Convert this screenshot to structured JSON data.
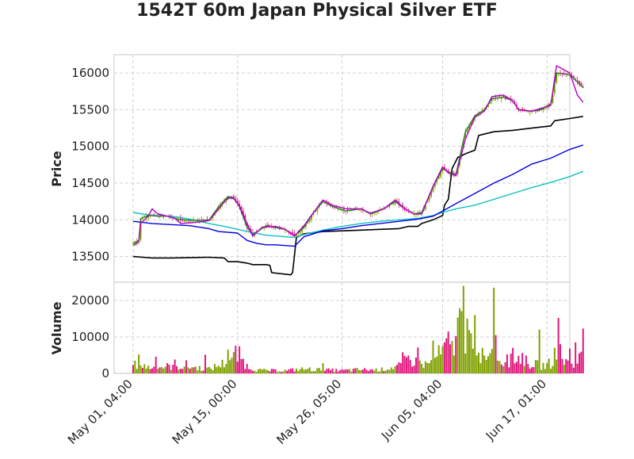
{
  "chart_data": {
    "type": "candlestick",
    "title": "1542T 60m Japan Physical Silver ETF",
    "price_panel": {
      "ylabel": "Price",
      "ylim": [
        13150,
        16250
      ],
      "yticks": [
        13500,
        14000,
        14500,
        15000,
        15500,
        16000
      ],
      "ytick_labels": [
        "13500",
        "14000",
        "14500",
        "15000",
        "15500",
        "16000"
      ],
      "grid": true
    },
    "volume_panel": {
      "ylabel": "Volume",
      "ylim": [
        0,
        25000
      ],
      "yticks": [
        0,
        10000,
        20000
      ],
      "ytick_labels": [
        "0",
        "10000",
        "20000"
      ],
      "grid": true
    },
    "x_range": [
      -10,
      230
    ],
    "xticks": [
      0,
      55,
      110,
      163,
      218
    ],
    "xtick_labels": [
      "May 01, 04:00",
      "May 15, 00:00",
      "May 26, 05:00",
      "Jun 05, 04:00",
      "Jun 17, 01:00"
    ],
    "colors": {
      "up": "#7fa000",
      "down": "#e0187c",
      "price_line": "#1e7a1e",
      "ma_fast": "#b000c8",
      "ma_blue": "#0000e0",
      "ma_cyan": "#10c0c0",
      "ma_black": "#000000",
      "grid": "#d0d0d0",
      "frame": "#dcdcdc"
    },
    "close_path": [
      [
        0,
        13680
      ],
      [
        3,
        13720
      ],
      [
        4,
        14020
      ],
      [
        8,
        14060
      ],
      [
        13,
        14050
      ],
      [
        18,
        14050
      ],
      [
        25,
        14000
      ],
      [
        35,
        13990
      ],
      [
        40,
        14000
      ],
      [
        45,
        14180
      ],
      [
        50,
        14320
      ],
      [
        53,
        14300
      ],
      [
        56,
        14180
      ],
      [
        60,
        13900
      ],
      [
        63,
        13800
      ],
      [
        70,
        13920
      ],
      [
        80,
        13870
      ],
      [
        85,
        13780
      ],
      [
        90,
        13900
      ],
      [
        95,
        14100
      ],
      [
        100,
        14250
      ],
      [
        105,
        14180
      ],
      [
        112,
        14120
      ],
      [
        120,
        14150
      ],
      [
        125,
        14080
      ],
      [
        132,
        14150
      ],
      [
        138,
        14250
      ],
      [
        143,
        14150
      ],
      [
        148,
        14080
      ],
      [
        152,
        14100
      ],
      [
        158,
        14450
      ],
      [
        163,
        14700
      ],
      [
        166,
        14650
      ],
      [
        170,
        14620
      ],
      [
        175,
        15200
      ],
      [
        180,
        15420
      ],
      [
        185,
        15500
      ],
      [
        189,
        15650
      ],
      [
        195,
        15670
      ],
      [
        200,
        15620
      ],
      [
        203,
        15500
      ],
      [
        210,
        15480
      ],
      [
        215,
        15500
      ],
      [
        220,
        15580
      ],
      [
        223,
        16000
      ],
      [
        230,
        15980
      ],
      [
        237,
        15800
      ]
    ],
    "ma_fast_path": [
      [
        0,
        13650
      ],
      [
        3,
        13700
      ],
      [
        4,
        13950
      ],
      [
        8,
        14050
      ],
      [
        10,
        14150
      ],
      [
        13,
        14080
      ],
      [
        18,
        14050
      ],
      [
        22,
        14020
      ],
      [
        25,
        13950
      ],
      [
        35,
        13970
      ],
      [
        40,
        13990
      ],
      [
        45,
        14150
      ],
      [
        50,
        14300
      ],
      [
        53,
        14290
      ],
      [
        56,
        14190
      ],
      [
        60,
        13950
      ],
      [
        63,
        13780
      ],
      [
        68,
        13900
      ],
      [
        75,
        13910
      ],
      [
        80,
        13870
      ],
      [
        85,
        13780
      ],
      [
        90,
        13920
      ],
      [
        95,
        14100
      ],
      [
        100,
        14270
      ],
      [
        105,
        14200
      ],
      [
        112,
        14150
      ],
      [
        120,
        14150
      ],
      [
        125,
        14090
      ],
      [
        132,
        14150
      ],
      [
        138,
        14270
      ],
      [
        143,
        14150
      ],
      [
        148,
        14080
      ],
      [
        152,
        14080
      ],
      [
        158,
        14460
      ],
      [
        163,
        14720
      ],
      [
        166,
        14640
      ],
      [
        170,
        14600
      ],
      [
        175,
        15100
      ],
      [
        180,
        15400
      ],
      [
        185,
        15480
      ],
      [
        189,
        15680
      ],
      [
        195,
        15700
      ],
      [
        200,
        15620
      ],
      [
        203,
        15500
      ],
      [
        210,
        15480
      ],
      [
        215,
        15520
      ],
      [
        220,
        15560
      ],
      [
        223,
        16100
      ],
      [
        230,
        16000
      ],
      [
        234,
        15700
      ],
      [
        237,
        15600
      ]
    ],
    "ma_blue_path": [
      [
        0,
        13980
      ],
      [
        10,
        13950
      ],
      [
        30,
        13920
      ],
      [
        40,
        13880
      ],
      [
        45,
        13840
      ],
      [
        55,
        13820
      ],
      [
        60,
        13720
      ],
      [
        65,
        13680
      ],
      [
        70,
        13660
      ],
      [
        75,
        13660
      ],
      [
        80,
        13650
      ],
      [
        85,
        13640
      ],
      [
        90,
        13770
      ],
      [
        100,
        13850
      ],
      [
        110,
        13880
      ],
      [
        120,
        13920
      ],
      [
        130,
        13950
      ],
      [
        140,
        13980
      ],
      [
        150,
        14010
      ],
      [
        158,
        14050
      ],
      [
        163,
        14120
      ],
      [
        170,
        14220
      ],
      [
        180,
        14360
      ],
      [
        190,
        14500
      ],
      [
        200,
        14620
      ],
      [
        210,
        14760
      ],
      [
        220,
        14840
      ],
      [
        230,
        14960
      ],
      [
        237,
        15020
      ]
    ],
    "ma_cyan_path": [
      [
        0,
        14100
      ],
      [
        10,
        14060
      ],
      [
        20,
        14050
      ],
      [
        30,
        14010
      ],
      [
        40,
        13950
      ],
      [
        50,
        13900
      ],
      [
        60,
        13840
      ],
      [
        70,
        13790
      ],
      [
        80,
        13770
      ],
      [
        85,
        13760
      ],
      [
        90,
        13800
      ],
      [
        100,
        13860
      ],
      [
        110,
        13910
      ],
      [
        120,
        13950
      ],
      [
        130,
        13980
      ],
      [
        140,
        14000
      ],
      [
        150,
        14020
      ],
      [
        158,
        14060
      ],
      [
        163,
        14100
      ],
      [
        170,
        14150
      ],
      [
        180,
        14200
      ],
      [
        190,
        14280
      ],
      [
        200,
        14360
      ],
      [
        210,
        14440
      ],
      [
        220,
        14510
      ],
      [
        230,
        14590
      ],
      [
        237,
        14660
      ]
    ],
    "ma_black_path": [
      [
        0,
        13500
      ],
      [
        5,
        13490
      ],
      [
        10,
        13480
      ],
      [
        20,
        13480
      ],
      [
        40,
        13490
      ],
      [
        48,
        13480
      ],
      [
        50,
        13430
      ],
      [
        55,
        13430
      ],
      [
        60,
        13410
      ],
      [
        63,
        13390
      ],
      [
        70,
        13390
      ],
      [
        72,
        13380
      ],
      [
        73,
        13280
      ],
      [
        80,
        13260
      ],
      [
        83,
        13250
      ],
      [
        84,
        13280
      ],
      [
        86,
        13760
      ],
      [
        90,
        13810
      ],
      [
        100,
        13840
      ],
      [
        110,
        13850
      ],
      [
        120,
        13860
      ],
      [
        130,
        13870
      ],
      [
        140,
        13880
      ],
      [
        145,
        13910
      ],
      [
        150,
        13910
      ],
      [
        152,
        13950
      ],
      [
        158,
        14000
      ],
      [
        163,
        14060
      ],
      [
        164,
        14200
      ],
      [
        166,
        14280
      ],
      [
        168,
        14700
      ],
      [
        171,
        14850
      ],
      [
        175,
        14900
      ],
      [
        180,
        14950
      ],
      [
        182,
        15150
      ],
      [
        190,
        15200
      ],
      [
        200,
        15220
      ],
      [
        210,
        15250
      ],
      [
        220,
        15280
      ],
      [
        222,
        15350
      ],
      [
        230,
        15380
      ],
      [
        237,
        15410
      ]
    ],
    "volume_profile": [
      [
        0,
        3000
      ],
      [
        5,
        2500
      ],
      [
        10,
        2000
      ],
      [
        20,
        2500
      ],
      [
        30,
        2200
      ],
      [
        40,
        1500
      ],
      [
        48,
        3500
      ],
      [
        52,
        5000
      ],
      [
        56,
        6000
      ],
      [
        60,
        2500
      ],
      [
        65,
        1200
      ],
      [
        70,
        1000
      ],
      [
        80,
        1000
      ],
      [
        90,
        1500
      ],
      [
        100,
        1200
      ],
      [
        110,
        1000
      ],
      [
        120,
        1300
      ],
      [
        130,
        1200
      ],
      [
        140,
        2500
      ],
      [
        145,
        5000
      ],
      [
        150,
        3500
      ],
      [
        155,
        3000
      ],
      [
        160,
        6000
      ],
      [
        163,
        7000
      ],
      [
        166,
        10000
      ],
      [
        170,
        12000
      ],
      [
        172,
        18000
      ],
      [
        175,
        12000
      ],
      [
        180,
        6000
      ],
      [
        185,
        5000
      ],
      [
        189,
        18000
      ],
      [
        192,
        6000
      ],
      [
        195,
        4000
      ],
      [
        200,
        4500
      ],
      [
        205,
        6000
      ],
      [
        208,
        3000
      ],
      [
        210,
        3500
      ],
      [
        215,
        2500
      ],
      [
        218,
        3000
      ],
      [
        221,
        4000
      ],
      [
        223,
        10000
      ],
      [
        226,
        5000
      ],
      [
        230,
        3000
      ],
      [
        235,
        5000
      ],
      [
        237,
        8000
      ]
    ],
    "volume_spikes": [
      [
        3,
        5200
      ],
      [
        12,
        4600
      ],
      [
        22,
        3800
      ],
      [
        28,
        3600
      ],
      [
        38,
        5100
      ],
      [
        50,
        6500
      ],
      [
        54,
        7600
      ],
      [
        100,
        2800
      ],
      [
        142,
        5800
      ],
      [
        150,
        7100
      ],
      [
        158,
        9000
      ],
      [
        164,
        8500
      ],
      [
        168,
        8900
      ],
      [
        170,
        10200
      ],
      [
        174,
        24000
      ],
      [
        176,
        15000
      ],
      [
        178,
        11000
      ],
      [
        180,
        16000
      ],
      [
        184,
        7000
      ],
      [
        188,
        5500
      ],
      [
        190,
        23500
      ],
      [
        191,
        10500
      ],
      [
        197,
        5200
      ],
      [
        200,
        7000
      ],
      [
        205,
        5600
      ],
      [
        214,
        12000
      ],
      [
        222,
        7000
      ],
      [
        224,
        15200
      ],
      [
        225,
        8000
      ],
      [
        230,
        6800
      ],
      [
        233,
        8500
      ],
      [
        237,
        12300
      ]
    ]
  }
}
